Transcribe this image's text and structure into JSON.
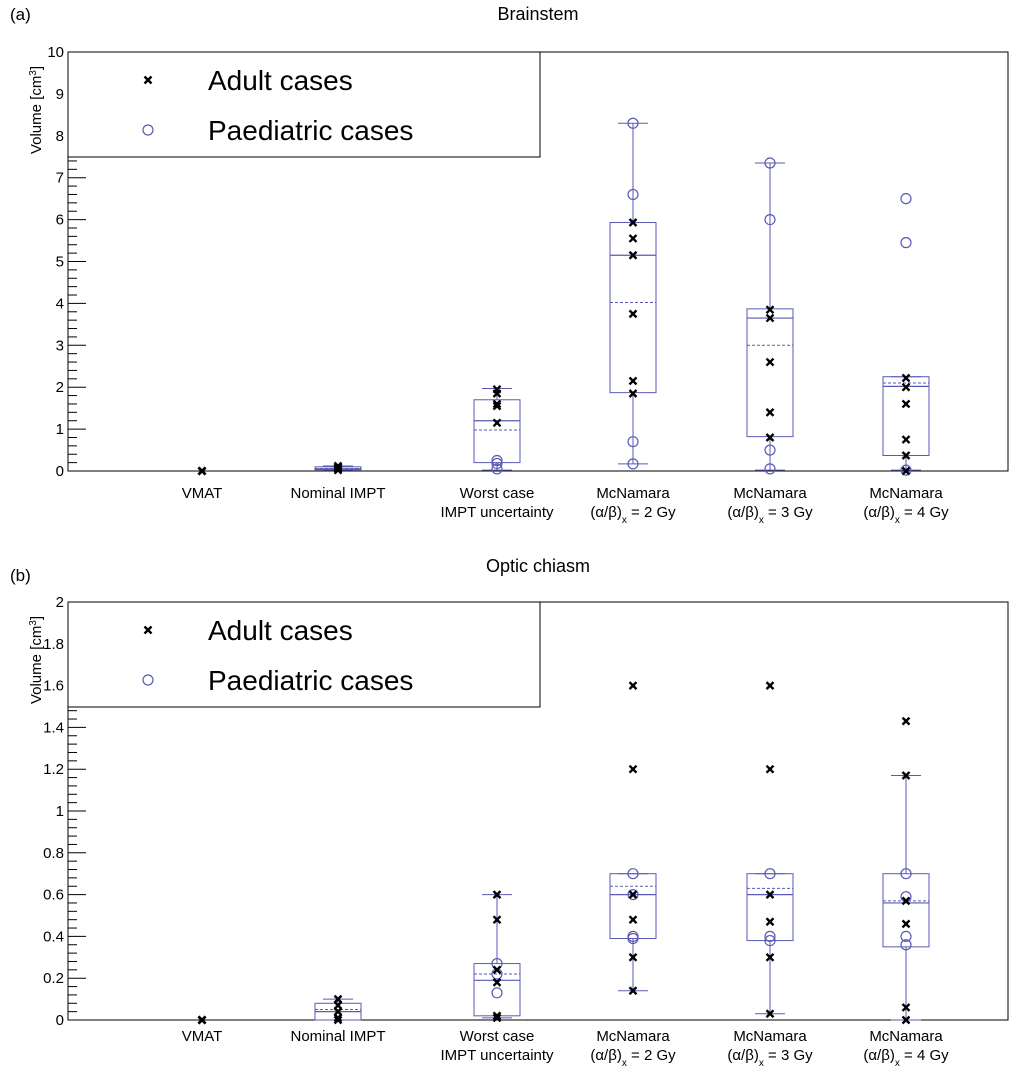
{
  "chart_data": [
    {
      "type": "box",
      "panel_label": "(a)",
      "title": "Brainstem",
      "ylabel": "Volume [cm",
      "ylabel_sup": "3",
      "ylabel_end": "]",
      "ylim": [
        0,
        10
      ],
      "yticks": [
        0,
        1,
        2,
        3,
        4,
        5,
        6,
        7,
        8,
        9,
        10
      ],
      "categories": [
        {
          "line1": "VMAT",
          "line2": ""
        },
        {
          "line1": "Nominal IMPT",
          "line2": ""
        },
        {
          "line1": "Worst case",
          "line2": "IMPT uncertainty"
        },
        {
          "line1": "McNamara",
          "line2": "(α/β)",
          "sub": "x",
          "tail": " = 2 Gy"
        },
        {
          "line1": "McNamara",
          "line2": "(α/β)",
          "sub": "x",
          "tail": " = 3 Gy"
        },
        {
          "line1": "McNamara",
          "line2": "(α/β)",
          "sub": "x",
          "tail": " = 4 Gy"
        }
      ],
      "legend": {
        "position": "top-left",
        "adult": "Adult cases",
        "paediatric": "Paediatric cases"
      },
      "boxes": [
        {
          "whisker_low": 0,
          "q1": 0,
          "median": 0,
          "mean": 0,
          "q3": 0,
          "whisker_high": 0
        },
        {
          "whisker_low": 0.02,
          "q1": 0.03,
          "median": 0.05,
          "mean": 0.06,
          "q3": 0.1,
          "whisker_high": 0.12
        },
        {
          "whisker_low": 0.02,
          "q1": 0.2,
          "median": 1.2,
          "mean": 0.98,
          "q3": 1.7,
          "whisker_high": 1.97
        },
        {
          "whisker_low": 0.17,
          "q1": 1.87,
          "median": 5.15,
          "mean": 4.02,
          "q3": 5.93,
          "whisker_high": 8.3
        },
        {
          "whisker_low": 0.02,
          "q1": 0.82,
          "median": 3.65,
          "mean": 3.0,
          "q3": 3.87,
          "whisker_high": 7.35
        },
        {
          "whisker_low": 0.02,
          "q1": 0.37,
          "median": 2.02,
          "mean": 2.1,
          "q3": 2.25,
          "whisker_high": 2.25
        }
      ],
      "adult": [
        [
          0,
          0,
          0,
          0,
          0
        ],
        [
          0.02,
          0.05,
          0.08,
          0.1,
          0.12
        ],
        [
          1.95,
          1.85,
          1.6,
          1.55,
          1.15
        ],
        [
          5.93,
          5.55,
          5.15,
          3.75,
          2.15,
          1.85
        ],
        [
          3.85,
          3.65,
          2.6,
          1.4,
          0.8
        ],
        [
          2.22,
          2.0,
          1.6,
          0.75,
          0.37,
          0.0
        ]
      ],
      "paediatric": [
        [],
        [],
        [
          0.25,
          0.18,
          0.05
        ],
        [
          8.3,
          6.6,
          0.7,
          0.17
        ],
        [
          7.35,
          6.0,
          0.5,
          0.05
        ],
        [
          6.5,
          5.45,
          0.02
        ]
      ]
    },
    {
      "type": "box",
      "panel_label": "(b)",
      "title": "Optic chiasm",
      "ylabel": "Volume [cm",
      "ylabel_sup": "3",
      "ylabel_end": "]",
      "ylim": [
        0,
        2
      ],
      "yticks": [
        0,
        0.2,
        0.4,
        0.6,
        0.8,
        1,
        1.2,
        1.4,
        1.6,
        1.8,
        2
      ],
      "categories": [
        {
          "line1": "VMAT",
          "line2": ""
        },
        {
          "line1": "Nominal IMPT",
          "line2": ""
        },
        {
          "line1": "Worst case",
          "line2": "IMPT uncertainty"
        },
        {
          "line1": "McNamara",
          "line2": "(α/β)",
          "sub": "x",
          "tail": " = 2 Gy"
        },
        {
          "line1": "McNamara",
          "line2": "(α/β)",
          "sub": "x",
          "tail": " = 3 Gy"
        },
        {
          "line1": "McNamara",
          "line2": "(α/β)",
          "sub": "x",
          "tail": " = 4 Gy"
        }
      ],
      "legend": {
        "position": "top-left",
        "adult": "Adult cases",
        "paediatric": "Paediatric cases"
      },
      "boxes": [
        {
          "whisker_low": 0,
          "q1": 0,
          "median": 0,
          "mean": 0,
          "q3": 0,
          "whisker_high": 0
        },
        {
          "whisker_low": 0.0,
          "q1": 0.0,
          "median": 0.04,
          "mean": 0.05,
          "q3": 0.08,
          "whisker_high": 0.1
        },
        {
          "whisker_low": 0.01,
          "q1": 0.02,
          "median": 0.19,
          "mean": 0.22,
          "q3": 0.27,
          "whisker_high": 0.6
        },
        {
          "whisker_low": 0.14,
          "q1": 0.39,
          "median": 0.6,
          "mean": 0.64,
          "q3": 0.7,
          "whisker_high": 0.7
        },
        {
          "whisker_low": 0.03,
          "q1": 0.38,
          "median": 0.6,
          "mean": 0.63,
          "q3": 0.7,
          "whisker_high": 0.7
        },
        {
          "whisker_low": 0.0,
          "q1": 0.35,
          "median": 0.56,
          "mean": 0.57,
          "q3": 0.7,
          "whisker_high": 1.17
        }
      ],
      "adult": [
        [
          0,
          0,
          0,
          0,
          0
        ],
        [
          0.1,
          0.07,
          0.04,
          0.01,
          0.0
        ],
        [
          0.6,
          0.48,
          0.24,
          0.18,
          0.02,
          0.01
        ],
        [
          1.6,
          1.2,
          0.6,
          0.48,
          0.3,
          0.14
        ],
        [
          1.6,
          1.2,
          0.6,
          0.47,
          0.3,
          0.03
        ],
        [
          1.43,
          1.17,
          0.57,
          0.46,
          0.06,
          0.0
        ]
      ],
      "paediatric": [
        [],
        [],
        [
          0.27,
          0.22,
          0.13
        ],
        [
          0.7,
          0.6,
          0.4,
          0.39
        ],
        [
          0.7,
          0.4,
          0.38
        ],
        [
          0.7,
          0.59,
          0.4,
          0.36
        ]
      ]
    }
  ]
}
